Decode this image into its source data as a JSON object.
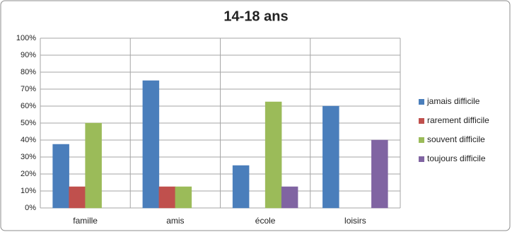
{
  "chart_data": {
    "type": "bar",
    "title": "14-18 ans",
    "categories": [
      "famille",
      "amis",
      "école",
      "loisirs"
    ],
    "series": [
      {
        "name": "jamais difficile",
        "color": "#4a7ebb",
        "values": [
          37.5,
          75,
          25,
          60
        ]
      },
      {
        "name": "rarement difficile",
        "color": "#c0504d",
        "values": [
          12.5,
          12.5,
          0,
          0
        ]
      },
      {
        "name": "souvent difficile",
        "color": "#9bbb59",
        "values": [
          50,
          12.5,
          62.5,
          0
        ]
      },
      {
        "name": "toujours difficile",
        "color": "#8064a2",
        "values": [
          0,
          0,
          12.5,
          40
        ]
      }
    ],
    "ylim": [
      0,
      100
    ],
    "yticks": [
      {
        "value": 0,
        "label": "0%"
      },
      {
        "value": 10,
        "label": "10%"
      },
      {
        "value": 20,
        "label": "20%"
      },
      {
        "value": 30,
        "label": "30%"
      },
      {
        "value": 40,
        "label": "40%"
      },
      {
        "value": 50,
        "label": "50%"
      },
      {
        "value": 60,
        "label": "60%"
      },
      {
        "value": 70,
        "label": "70%"
      },
      {
        "value": 80,
        "label": "80%"
      },
      {
        "value": 90,
        "label": "90%"
      },
      {
        "value": 100,
        "label": "100%"
      }
    ],
    "grid": true,
    "legend": "right"
  }
}
